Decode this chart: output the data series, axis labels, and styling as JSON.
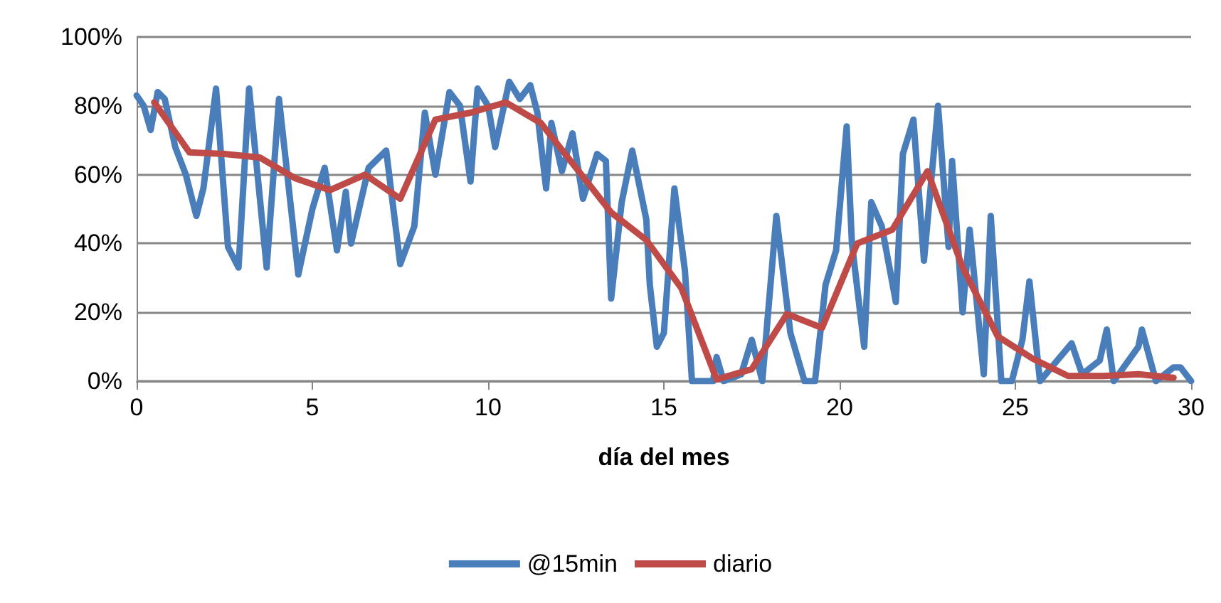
{
  "chart_data": {
    "type": "line",
    "xlabel": "día del mes",
    "xlim": [
      0,
      30
    ],
    "xticks": [
      0,
      5,
      10,
      15,
      20,
      25,
      30
    ],
    "ylim": [
      0,
      100
    ],
    "yticks": [
      {
        "value": 0,
        "label": "0%"
      },
      {
        "value": 20,
        "label": "20%"
      },
      {
        "value": 40,
        "label": "40%"
      },
      {
        "value": 60,
        "label": "60%"
      },
      {
        "value": 80,
        "label": "80%"
      },
      {
        "value": 100,
        "label": "100%"
      }
    ],
    "grid": "y",
    "legend": "bottom",
    "marker": "none",
    "line_style": "solid",
    "series": [
      {
        "name": "@15min",
        "color": "#4a7ebb",
        "x": [
          0,
          0.2,
          0.4,
          0.6,
          0.8,
          1.1,
          1.4,
          1.7,
          1.9,
          2.1,
          2.26,
          2.6,
          2.9,
          3.2,
          3.7,
          4.05,
          4.6,
          5.0,
          5.35,
          5.7,
          5.95,
          6.1,
          6.6,
          7.1,
          7.5,
          7.9,
          8.2,
          8.5,
          8.9,
          9.2,
          9.5,
          9.7,
          10.0,
          10.2,
          10.6,
          10.9,
          11.2,
          11.4,
          11.65,
          11.8,
          12.1,
          12.4,
          12.7,
          13.1,
          13.35,
          13.5,
          13.8,
          14.1,
          14.5,
          14.6,
          14.8,
          15.0,
          15.3,
          15.6,
          15.8,
          16.0,
          16.4,
          16.5,
          16.7,
          17.2,
          17.5,
          17.8,
          18.2,
          18.6,
          19.0,
          19.3,
          19.6,
          19.9,
          20.2,
          20.35,
          20.7,
          20.9,
          21.2,
          21.6,
          21.8,
          22.1,
          22.4,
          22.8,
          23.1,
          23.2,
          23.5,
          23.7,
          24.1,
          24.3,
          24.6,
          24.9,
          25.2,
          25.4,
          25.7,
          26.6,
          26.9,
          27.4,
          27.6,
          27.8,
          28.5,
          28.6,
          29.0,
          29.5,
          29.7,
          30.0
        ],
        "values": [
          83,
          80,
          73,
          84,
          82,
          68,
          60,
          48,
          56,
          72,
          85,
          39,
          33,
          85,
          33,
          82,
          31,
          50,
          62,
          38,
          55,
          40,
          62,
          67,
          34,
          45,
          78,
          60,
          84,
          80,
          58,
          85,
          80,
          68,
          87,
          82,
          86,
          78,
          56,
          75,
          61,
          72,
          53,
          66,
          64,
          24,
          52,
          67,
          47,
          28,
          10,
          14,
          56,
          32,
          0,
          0,
          0,
          7,
          0,
          2,
          12,
          0,
          48,
          14,
          0,
          0,
          28,
          38,
          74,
          40,
          10,
          52,
          45,
          23,
          66,
          76,
          35,
          80,
          39,
          64,
          20,
          44,
          2,
          48,
          0,
          0,
          12,
          29,
          0,
          11,
          2,
          6,
          15,
          0,
          10,
          15,
          0,
          4,
          4,
          0
        ]
      },
      {
        "name": "diario",
        "color": "#be4b48",
        "x": [
          0.5,
          1.5,
          2.5,
          3.5,
          4.5,
          5.5,
          6.5,
          7.5,
          8.5,
          9.5,
          10.5,
          11.5,
          12.5,
          13.5,
          14.5,
          15.5,
          16.5,
          17.5,
          18.5,
          19.5,
          20.5,
          21.5,
          22.5,
          23.5,
          24.5,
          25.5,
          26.5,
          27.5,
          28.5,
          29.5
        ],
        "values": [
          81,
          66.5,
          66,
          65,
          59,
          55.5,
          60,
          53,
          76,
          78,
          81,
          75,
          62,
          49,
          41,
          27,
          0.5,
          3.5,
          19.5,
          15.5,
          40,
          44,
          61,
          33,
          13,
          6.5,
          1.5,
          1.5,
          2,
          1
        ]
      }
    ]
  }
}
